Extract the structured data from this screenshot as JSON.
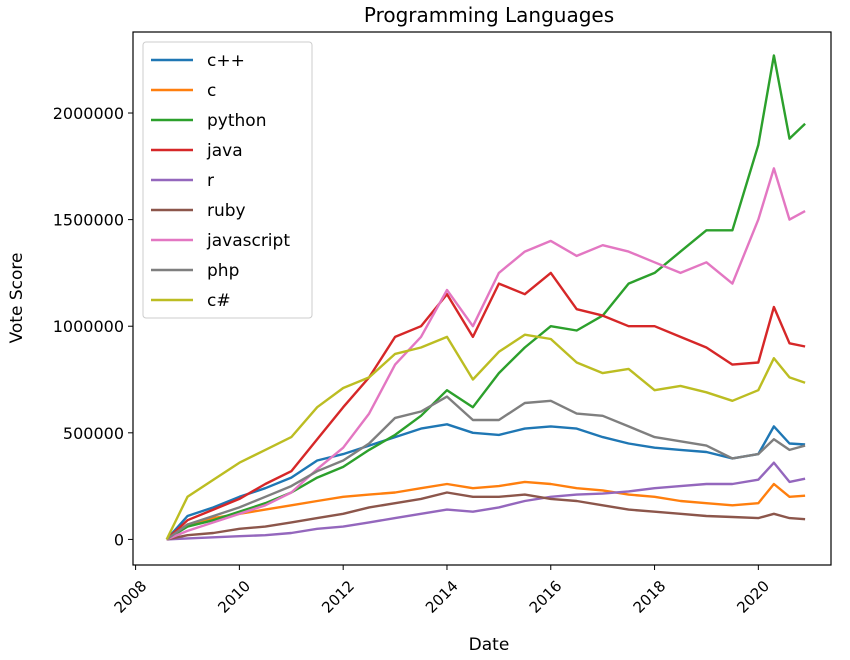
{
  "chart_data": {
    "type": "line",
    "title": "Programming Languages",
    "xlabel": "Date",
    "ylabel": "Vote Score",
    "xlim": [
      2007.95,
      2021.4
    ],
    "ylim": [
      -120000,
      2380000
    ],
    "x_ticks": [
      "2008",
      "2010",
      "2012",
      "2014",
      "2016",
      "2018",
      "2020"
    ],
    "y_ticks": [
      "0",
      "500000",
      "1000000",
      "1500000",
      "2000000"
    ],
    "grid": false,
    "legend": "top-left",
    "x": [
      2008.6,
      2009.0,
      2009.5,
      2010.0,
      2010.5,
      2011.0,
      2011.5,
      2012.0,
      2012.5,
      2013.0,
      2013.5,
      2014.0,
      2014.5,
      2015.0,
      2015.5,
      2016.0,
      2016.5,
      2017.0,
      2017.5,
      2018.0,
      2018.5,
      2019.0,
      2019.5,
      2020.0,
      2020.3,
      2020.6,
      2020.9
    ],
    "series": [
      {
        "name": "c++",
        "color": "#1f77b4",
        "values": [
          0,
          110000,
          150000,
          200000,
          240000,
          290000,
          370000,
          400000,
          440000,
          480000,
          520000,
          540000,
          500000,
          490000,
          520000,
          530000,
          520000,
          480000,
          450000,
          430000,
          420000,
          410000,
          380000,
          400000,
          530000,
          450000,
          445000
        ]
      },
      {
        "name": "c",
        "color": "#ff7f0e",
        "values": [
          0,
          70000,
          100000,
          120000,
          140000,
          160000,
          180000,
          200000,
          210000,
          220000,
          240000,
          260000,
          240000,
          250000,
          270000,
          260000,
          240000,
          230000,
          210000,
          200000,
          180000,
          170000,
          160000,
          170000,
          260000,
          200000,
          205000
        ]
      },
      {
        "name": "python",
        "color": "#2ca02c",
        "values": [
          0,
          60000,
          90000,
          130000,
          170000,
          220000,
          290000,
          340000,
          420000,
          490000,
          580000,
          700000,
          620000,
          780000,
          900000,
          1000000,
          980000,
          1050000,
          1200000,
          1250000,
          1350000,
          1450000,
          1450000,
          1850000,
          2270000,
          1880000,
          1950000
        ]
      },
      {
        "name": "java",
        "color": "#d62728",
        "values": [
          0,
          90000,
          140000,
          190000,
          260000,
          320000,
          470000,
          620000,
          760000,
          950000,
          1000000,
          1150000,
          950000,
          1200000,
          1150000,
          1250000,
          1080000,
          1050000,
          1000000,
          1000000,
          950000,
          900000,
          820000,
          830000,
          1090000,
          920000,
          905000
        ]
      },
      {
        "name": "r",
        "color": "#9467bd",
        "values": [
          0,
          5000,
          10000,
          15000,
          20000,
          30000,
          50000,
          60000,
          80000,
          100000,
          120000,
          140000,
          130000,
          150000,
          180000,
          200000,
          210000,
          215000,
          225000,
          240000,
          250000,
          260000,
          260000,
          280000,
          360000,
          270000,
          285000
        ]
      },
      {
        "name": "ruby",
        "color": "#8c564b",
        "values": [
          0,
          20000,
          30000,
          50000,
          60000,
          80000,
          100000,
          120000,
          150000,
          170000,
          190000,
          220000,
          200000,
          200000,
          210000,
          190000,
          180000,
          160000,
          140000,
          130000,
          120000,
          110000,
          105000,
          100000,
          120000,
          100000,
          95000
        ]
      },
      {
        "name": "javascript",
        "color": "#e377c2",
        "values": [
          0,
          40000,
          80000,
          120000,
          160000,
          220000,
          330000,
          430000,
          590000,
          820000,
          950000,
          1170000,
          1000000,
          1250000,
          1350000,
          1400000,
          1330000,
          1380000,
          1350000,
          1300000,
          1250000,
          1300000,
          1200000,
          1500000,
          1740000,
          1500000,
          1540000
        ]
      },
      {
        "name": "php",
        "color": "#7f7f7f",
        "values": [
          0,
          70000,
          110000,
          150000,
          200000,
          250000,
          320000,
          370000,
          450000,
          570000,
          600000,
          670000,
          560000,
          560000,
          640000,
          650000,
          590000,
          580000,
          530000,
          480000,
          460000,
          440000,
          380000,
          400000,
          470000,
          420000,
          440000
        ]
      },
      {
        "name": "c#",
        "color": "#bcbd22",
        "values": [
          0,
          200000,
          280000,
          360000,
          420000,
          480000,
          620000,
          710000,
          760000,
          870000,
          900000,
          950000,
          750000,
          880000,
          960000,
          940000,
          830000,
          780000,
          800000,
          700000,
          720000,
          690000,
          650000,
          700000,
          850000,
          760000,
          735000
        ]
      }
    ]
  }
}
